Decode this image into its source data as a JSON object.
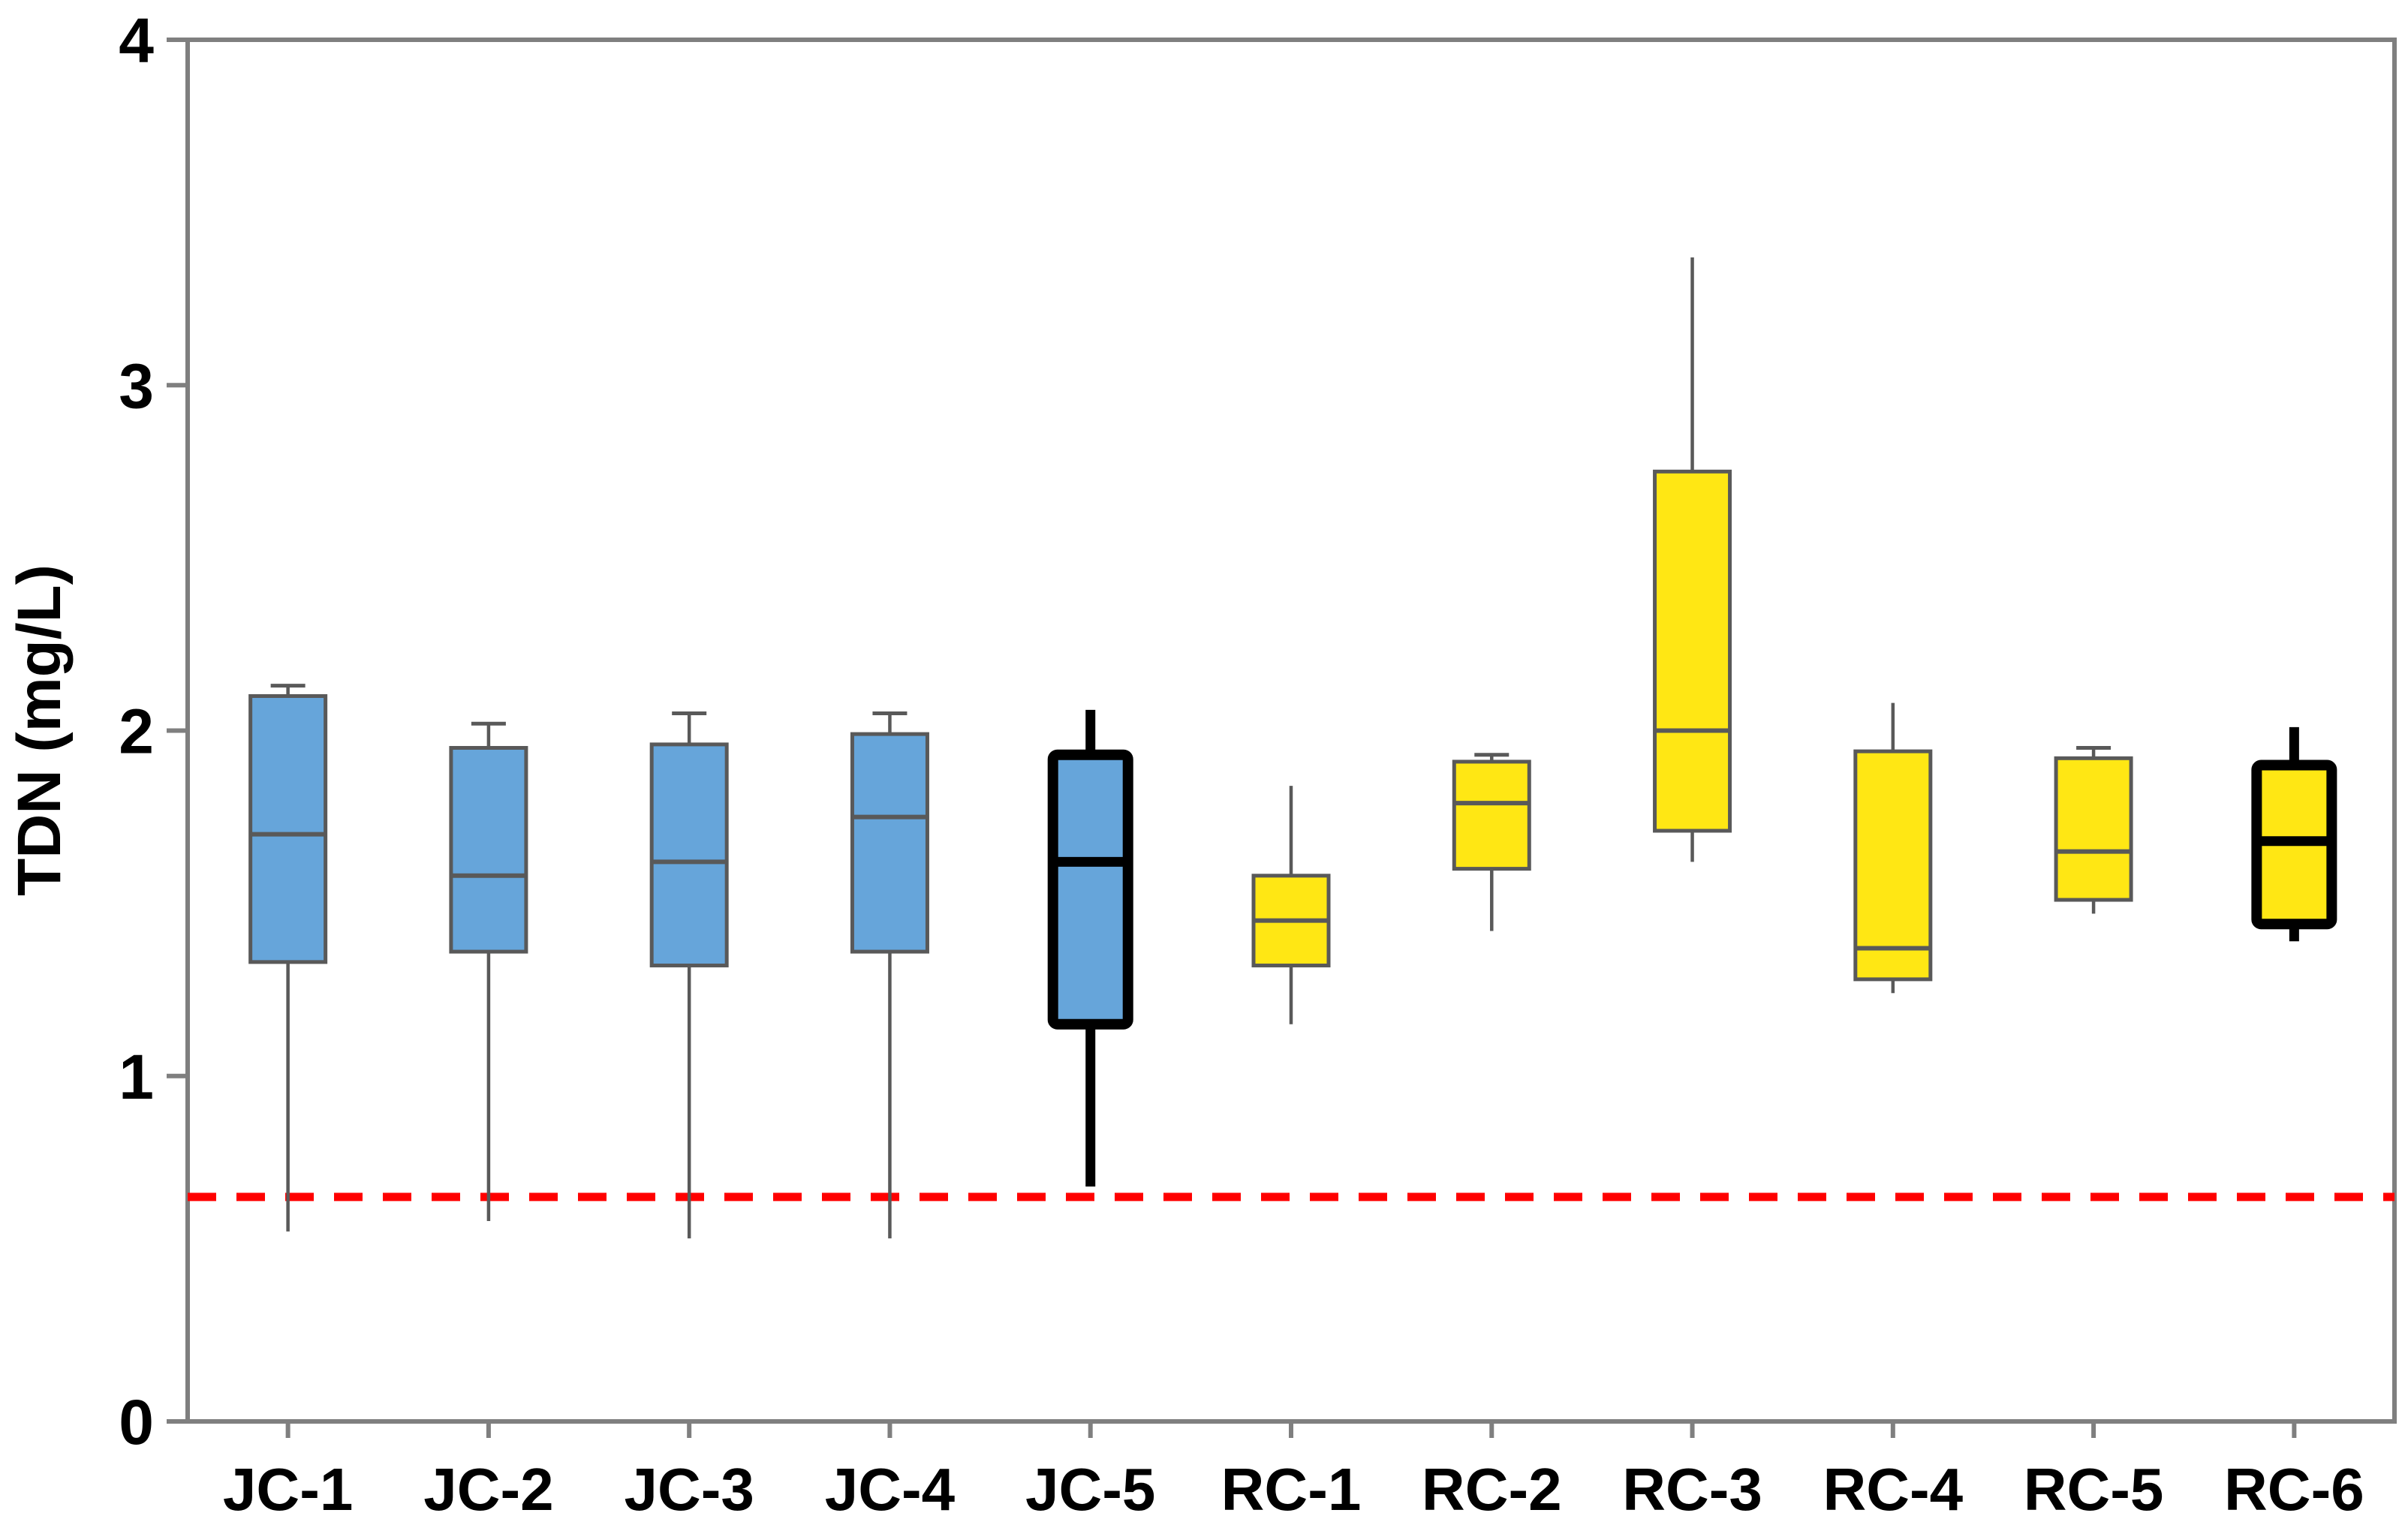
{
  "figure": {
    "background": "#ffffff"
  },
  "chart_data": {
    "type": "boxplot",
    "title": "",
    "xlabel": "",
    "ylabel": "TDN (mg/L)",
    "ylim": [
      0,
      4
    ],
    "yticks": [
      "0",
      "1",
      "2",
      "3",
      "4"
    ],
    "ytick_values": [
      0,
      1,
      2,
      3,
      4
    ],
    "grid": false,
    "legend": "none",
    "reference_line": {
      "value": 0.65,
      "color": "#ff0000",
      "style": "dashed"
    },
    "groups": [
      {
        "name": "JC",
        "fill": "#66a5da"
      },
      {
        "name": "RC",
        "fill": "#ffe714"
      }
    ],
    "categories": [
      "JC-1",
      "JC-2",
      "JC-3",
      "JC-4",
      "JC-5",
      "RC-1",
      "RC-2",
      "RC-3",
      "RC-4",
      "RC-5",
      "RC-6"
    ],
    "series": [
      {
        "label": "JC-1",
        "group": "JC",
        "min": 0.55,
        "q1": 1.33,
        "median": 1.7,
        "q3": 2.1,
        "max": 2.13,
        "bold": false,
        "top_cap": true
      },
      {
        "label": "JC-2",
        "group": "JC",
        "min": 0.58,
        "q1": 1.36,
        "median": 1.58,
        "q3": 1.95,
        "max": 2.02,
        "bold": false,
        "top_cap": true
      },
      {
        "label": "JC-3",
        "group": "JC",
        "min": 0.53,
        "q1": 1.32,
        "median": 1.62,
        "q3": 1.96,
        "max": 2.05,
        "bold": false,
        "top_cap": true
      },
      {
        "label": "JC-4",
        "group": "JC",
        "min": 0.53,
        "q1": 1.36,
        "median": 1.75,
        "q3": 1.99,
        "max": 2.05,
        "bold": false,
        "top_cap": true
      },
      {
        "label": "JC-5",
        "group": "JC",
        "min": 0.68,
        "q1": 1.15,
        "median": 1.62,
        "q3": 1.93,
        "max": 2.06,
        "bold": true,
        "top_cap": false
      },
      {
        "label": "RC-1",
        "group": "RC",
        "min": 1.15,
        "q1": 1.32,
        "median": 1.45,
        "q3": 1.58,
        "max": 1.84,
        "bold": false,
        "top_cap": false
      },
      {
        "label": "RC-2",
        "group": "RC",
        "min": 1.42,
        "q1": 1.6,
        "median": 1.79,
        "q3": 1.91,
        "max": 1.93,
        "bold": false,
        "top_cap": true
      },
      {
        "label": "RC-3",
        "group": "RC",
        "min": 1.62,
        "q1": 1.71,
        "median": 2.0,
        "q3": 2.75,
        "max": 3.37,
        "bold": false,
        "top_cap": false
      },
      {
        "label": "RC-4",
        "group": "RC",
        "min": 1.24,
        "q1": 1.28,
        "median": 1.37,
        "q3": 1.94,
        "max": 2.08,
        "bold": false,
        "top_cap": false
      },
      {
        "label": "RC-5",
        "group": "RC",
        "min": 1.47,
        "q1": 1.51,
        "median": 1.65,
        "q3": 1.92,
        "max": 1.95,
        "bold": false,
        "top_cap": true
      },
      {
        "label": "RC-6",
        "group": "RC",
        "min": 1.39,
        "q1": 1.44,
        "median": 1.68,
        "q3": 1.9,
        "max": 2.01,
        "bold": true,
        "top_cap": false
      }
    ]
  },
  "colors": {
    "blue_fill": "#66a5da",
    "yellow_fill": "#ffe714",
    "box_border": "#595959",
    "bold_border": "#000000",
    "whisker": "#595959",
    "axis_spine": "#7f7f7f",
    "reference_red": "#ff0000",
    "text": "#000000"
  }
}
